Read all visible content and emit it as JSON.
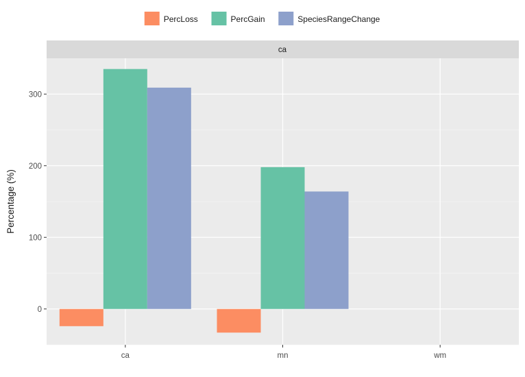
{
  "chart_data": {
    "type": "bar",
    "facet_label": "ca",
    "categories": [
      "ca",
      "mn",
      "wm"
    ],
    "series": [
      {
        "name": "PercLoss",
        "color": "#FC8D62",
        "values": [
          -24,
          -33,
          0
        ]
      },
      {
        "name": "PercGain",
        "color": "#66C2A5",
        "values": [
          335,
          198,
          0
        ]
      },
      {
        "name": "SpeciesRangeChange",
        "color": "#8DA0CB",
        "values": [
          309,
          164,
          0
        ]
      }
    ],
    "ylabel": "Percentage (%)",
    "xlabel": "",
    "ylim": [
      -50,
      350
    ],
    "yticks": [
      0,
      100,
      200,
      300
    ],
    "legend_position": "top",
    "grid": true,
    "panel_background": "#EBEBEB",
    "strip_background": "#D9D9D9"
  }
}
